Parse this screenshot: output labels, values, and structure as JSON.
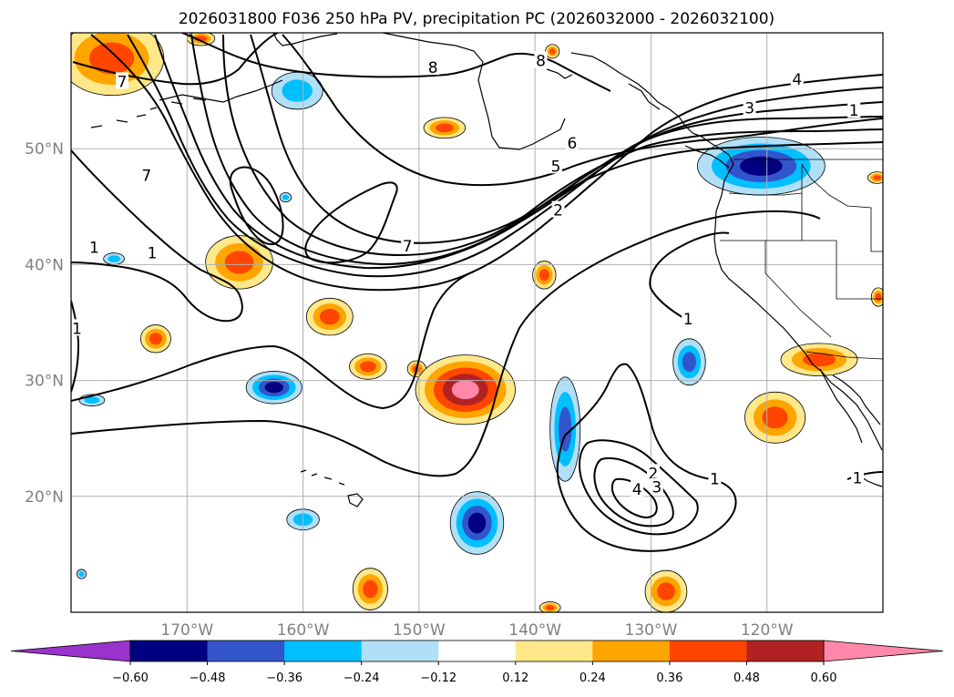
{
  "title": "2026031800 F036 250 hPa PV, precipitation PC (2026032000 - 2026032100)",
  "map": {
    "projection": "PlateCarree",
    "lon_range": [
      -180,
      -110
    ],
    "lat_range": [
      10,
      60
    ],
    "lon_ticks": [
      {
        "lon": -170,
        "label": "170°W"
      },
      {
        "lon": -160,
        "label": "160°W"
      },
      {
        "lon": -150,
        "label": "150°W"
      },
      {
        "lon": -140,
        "label": "140°W"
      },
      {
        "lon": -130,
        "label": "130°W"
      },
      {
        "lon": -120,
        "label": "120°W"
      }
    ],
    "lat_ticks": [
      {
        "lat": 50,
        "label": "50°N"
      },
      {
        "lat": 40,
        "label": "40°N"
      },
      {
        "lat": 30,
        "label": "30°N"
      },
      {
        "lat": 20,
        "label": "20°N"
      }
    ],
    "grid": true
  },
  "pv_contours": {
    "levels": [
      1,
      2,
      3,
      4,
      5,
      6,
      7,
      8
    ],
    "labels": [
      {
        "text": "8",
        "lon": -148.8,
        "lat": 57.0
      },
      {
        "text": "8",
        "lon": -139.5,
        "lat": 57.6
      },
      {
        "text": "7",
        "lon": -175.6,
        "lat": 55.8
      },
      {
        "text": "4",
        "lon": -117.4,
        "lat": 56.0
      },
      {
        "text": "3",
        "lon": -121.5,
        "lat": 53.5
      },
      {
        "text": "1",
        "lon": -112.5,
        "lat": 53.3
      },
      {
        "text": "6",
        "lon": -136.8,
        "lat": 50.5
      },
      {
        "text": "5",
        "lon": -138.2,
        "lat": 48.5
      },
      {
        "text": "2",
        "lon": -138.0,
        "lat": 44.7
      },
      {
        "text": "7",
        "lon": -173.5,
        "lat": 47.7
      },
      {
        "text": "7",
        "lon": -151.0,
        "lat": 41.6
      },
      {
        "text": "1",
        "lon": -178.0,
        "lat": 41.5
      },
      {
        "text": "1",
        "lon": -173.0,
        "lat": 41.0
      },
      {
        "text": "1",
        "lon": -179.5,
        "lat": 34.5
      },
      {
        "text": "1",
        "lon": -126.8,
        "lat": 35.3
      },
      {
        "text": "2",
        "lon": -129.8,
        "lat": 22.0
      },
      {
        "text": "3",
        "lon": -129.5,
        "lat": 20.8
      },
      {
        "text": "4",
        "lon": -131.2,
        "lat": 20.6
      },
      {
        "text": "1",
        "lon": -124.5,
        "lat": 21.5
      },
      {
        "text": "1",
        "lon": -112.2,
        "lat": 21.6
      }
    ]
  },
  "precip_pc": {
    "colorbar": {
      "ticks": [
        "−0.60",
        "−0.48",
        "−0.36",
        "−0.24",
        "−0.12",
        "0.12",
        "0.24",
        "0.36",
        "0.48",
        "0.60"
      ],
      "colors": [
        "#9933cc",
        "#000080",
        "#3355cc",
        "#00bfff",
        "#b0e0f8",
        "#ffffff",
        "#ffe88a",
        "#ffa500",
        "#ff4500",
        "#b22222",
        "#ff88aa"
      ],
      "extend": "both"
    },
    "features": [
      {
        "sign": "pos",
        "lon": -176.5,
        "lat": 57.8,
        "rx": 4.5,
        "ry": 3.2,
        "peak": 0.42
      },
      {
        "sign": "pos",
        "lon": -165.5,
        "lat": 40.2,
        "rx": 2.9,
        "ry": 2.3,
        "peak": 0.42
      },
      {
        "sign": "pos",
        "lon": -147.8,
        "lat": 51.8,
        "rx": 1.8,
        "ry": 0.9,
        "peak": 0.38
      },
      {
        "sign": "neg",
        "lon": -160.5,
        "lat": 55.0,
        "rx": 2.2,
        "ry": 1.6,
        "peak": -0.35
      },
      {
        "sign": "pos",
        "lon": -157.7,
        "lat": 35.5,
        "rx": 2.0,
        "ry": 1.6,
        "peak": 0.4
      },
      {
        "sign": "pos",
        "lon": -172.7,
        "lat": 33.6,
        "rx": 1.3,
        "ry": 1.2,
        "peak": 0.38
      },
      {
        "sign": "pos",
        "lon": -154.4,
        "lat": 31.2,
        "rx": 1.6,
        "ry": 1.1,
        "peak": 0.38
      },
      {
        "sign": "pos",
        "lon": -150.2,
        "lat": 31.0,
        "rx": 0.8,
        "ry": 0.7,
        "peak": 0.38
      },
      {
        "sign": "pos",
        "lon": -146.0,
        "lat": 29.2,
        "rx": 4.3,
        "ry": 3.0,
        "peak": 0.65
      },
      {
        "sign": "neg",
        "lon": -162.5,
        "lat": 29.4,
        "rx": 2.4,
        "ry": 1.4,
        "peak": -0.52
      },
      {
        "sign": "neg",
        "lon": -178.2,
        "lat": 28.3,
        "rx": 1.1,
        "ry": 0.5,
        "peak": -0.3
      },
      {
        "sign": "neg",
        "lon": -160.0,
        "lat": 18.0,
        "rx": 1.4,
        "ry": 0.9,
        "peak": -0.35
      },
      {
        "sign": "neg",
        "lon": -145.0,
        "lat": 17.7,
        "rx": 2.3,
        "ry": 2.7,
        "peak": -0.55
      },
      {
        "sign": "neg",
        "lon": -137.4,
        "lat": 25.8,
        "rx": 1.3,
        "ry": 4.5,
        "peak": -0.38
      },
      {
        "sign": "neg",
        "lon": -126.7,
        "lat": 31.6,
        "rx": 1.4,
        "ry": 2.0,
        "peak": -0.38
      },
      {
        "sign": "neg",
        "lon": -120.5,
        "lat": 48.5,
        "rx": 5.5,
        "ry": 2.5,
        "peak": -0.55
      },
      {
        "sign": "pos",
        "lon": -115.5,
        "lat": 31.8,
        "rx": 3.3,
        "ry": 1.4,
        "peak": 0.45
      },
      {
        "sign": "pos",
        "lon": -119.3,
        "lat": 26.8,
        "rx": 2.6,
        "ry": 2.2,
        "peak": 0.4
      },
      {
        "sign": "pos",
        "lon": -139.2,
        "lat": 39.1,
        "rx": 1.0,
        "ry": 1.2,
        "peak": 0.38
      },
      {
        "sign": "neg",
        "lon": -161.5,
        "lat": 45.8,
        "rx": 0.5,
        "ry": 0.4,
        "peak": -0.3
      },
      {
        "sign": "pos",
        "lon": -154.2,
        "lat": 12.0,
        "rx": 1.5,
        "ry": 1.8,
        "peak": 0.4
      },
      {
        "sign": "pos",
        "lon": -128.7,
        "lat": 11.8,
        "rx": 1.8,
        "ry": 1.8,
        "peak": 0.42
      },
      {
        "sign": "pos",
        "lon": -138.7,
        "lat": 10.4,
        "rx": 0.9,
        "ry": 0.5,
        "peak": 0.38
      },
      {
        "sign": "neg",
        "lon": -179.1,
        "lat": 13.3,
        "rx": 0.4,
        "ry": 0.4,
        "peak": -0.3
      },
      {
        "sign": "neg",
        "lon": -176.3,
        "lat": 40.5,
        "rx": 0.9,
        "ry": 0.5,
        "peak": -0.3
      },
      {
        "sign": "pos",
        "lon": -110.5,
        "lat": 47.5,
        "rx": 0.8,
        "ry": 0.5,
        "peak": 0.38
      },
      {
        "sign": "pos",
        "lon": -110.4,
        "lat": 37.2,
        "rx": 0.6,
        "ry": 0.8,
        "peak": 0.38
      },
      {
        "sign": "pos",
        "lon": -138.5,
        "lat": 58.4,
        "rx": 0.6,
        "ry": 0.6,
        "peak": 0.38
      },
      {
        "sign": "pos",
        "lon": -168.8,
        "lat": 59.5,
        "rx": 1.2,
        "ry": 0.6,
        "peak": 0.38
      }
    ]
  }
}
